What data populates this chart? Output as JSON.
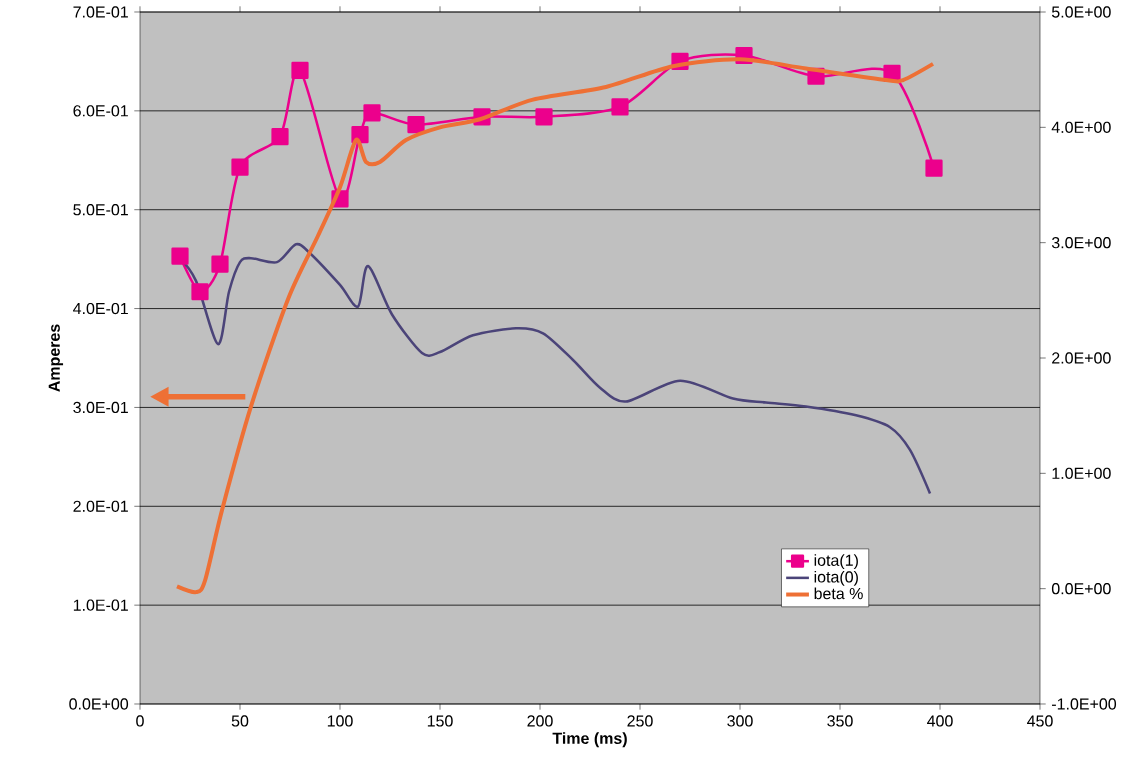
{
  "chart_data": {
    "type": "line",
    "xlabel": "Time (ms)",
    "ylabel": "Amperes",
    "xlim": [
      0,
      450
    ],
    "xticks": [
      0,
      50,
      100,
      150,
      200,
      250,
      300,
      350,
      400,
      450
    ],
    "ylim": [
      0,
      0.7
    ],
    "yticks": [
      {
        "value": 0,
        "label": "0.0E+00"
      },
      {
        "value": 0.1,
        "label": "1.0E-01"
      },
      {
        "value": 0.2,
        "label": "2.0E-01"
      },
      {
        "value": 0.3,
        "label": "3.0E-01"
      },
      {
        "value": 0.4,
        "label": "4.0E-01"
      },
      {
        "value": 0.5,
        "label": "5.0E-01"
      },
      {
        "value": 0.6,
        "label": "6.0E-01"
      },
      {
        "value": 0.7,
        "label": "7.0E-01"
      }
    ],
    "y2lim": [
      -1,
      5
    ],
    "y2ticks": [
      {
        "value": -1,
        "label": "-1.0E+00"
      },
      {
        "value": 0,
        "label": "0.0E+00"
      },
      {
        "value": 1,
        "label": "1.0E+00"
      },
      {
        "value": 2,
        "label": "2.0E+00"
      },
      {
        "value": 3,
        "label": "3.0E+00"
      },
      {
        "value": 4,
        "label": "4.0E+00"
      },
      {
        "value": 5,
        "label": "5.0E+00"
      }
    ],
    "grid": "y",
    "legend": "bottom right",
    "series": [
      {
        "name": "iota(1)",
        "color": "#ec008c",
        "marker": "square",
        "x": [
          20,
          30,
          40,
          50,
          70,
          80,
          100,
          110,
          116,
          138,
          171,
          202,
          240,
          270,
          302,
          338,
          376,
          397
        ],
        "values": [
          0.453,
          0.417,
          0.445,
          0.543,
          0.574,
          0.641,
          0.511,
          0.576,
          0.598,
          0.586,
          0.594,
          0.594,
          0.604,
          0.65,
          0.656,
          0.635,
          0.638,
          0.542
        ]
      },
      {
        "name": "iota(0)",
        "color": "#4b4479",
        "x": [
          19.5,
          28,
          39,
          44.5,
          50,
          55.5,
          68.5,
          78,
          85,
          100,
          109,
          114,
          126,
          141,
          150,
          166.5,
          188,
          201.5,
          216.5,
          230,
          243,
          270,
          296.5,
          313,
          333,
          358,
          375,
          385,
          395
        ],
        "values": [
          0.452,
          0.428,
          0.364,
          0.417,
          0.447,
          0.451,
          0.447,
          0.465,
          0.456,
          0.424,
          0.402,
          0.443,
          0.394,
          0.355,
          0.356,
          0.373,
          0.38,
          0.375,
          0.348,
          0.32,
          0.306,
          0.327,
          0.309,
          0.305,
          0.301,
          0.292,
          0.28,
          0.257,
          0.213
        ]
      },
      {
        "name": "beta %",
        "color": "#ee7035",
        "axis": "y2",
        "x": [
          18.5,
          28,
          32.5,
          41,
          55.5,
          74,
          89,
          100,
          108,
          113,
          120,
          133,
          150,
          170,
          196.5,
          233,
          266.5,
          300,
          333,
          373,
          381.5,
          396.5
        ],
        "values": [
          0.02,
          -0.03,
          0.07,
          0.68,
          1.58,
          2.51,
          3.06,
          3.48,
          3.89,
          3.7,
          3.7,
          3.89,
          4.0,
          4.07,
          4.24,
          4.35,
          4.53,
          4.59,
          4.51,
          4.41,
          4.41,
          4.55
        ]
      }
    ]
  }
}
